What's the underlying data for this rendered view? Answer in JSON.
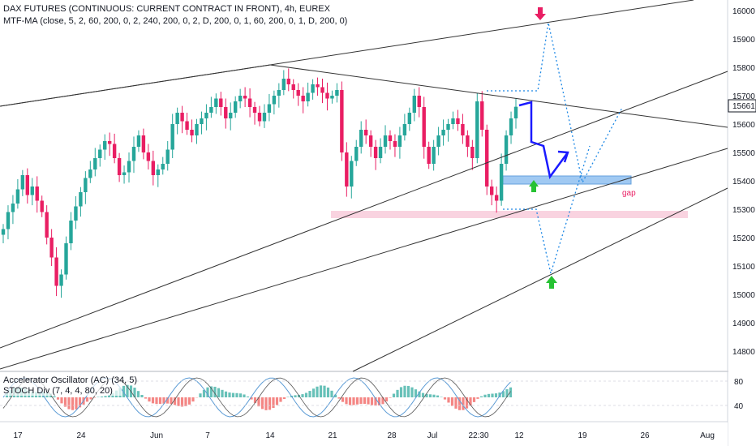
{
  "header": {
    "symbol_line": "DAX FUTURES (CONTINUOUS: CURRENT CONTRACT IN FRONT), 4h, EUREX",
    "indicator_line": "MTF-MA (close, 5, 2, 60, 200, 0, 2, 240, 200, 0, 2, D, 200, 0, 1, 60, 200, 0, 1, D, 200, 0)"
  },
  "oscillator": {
    "line1": "Accelerator Oscillator (AC) (34, 5)",
    "line2": "STOCH Div (7, 4, 4, 80, 20)",
    "ticks": [
      "80",
      "40"
    ]
  },
  "price_axis": {
    "ticks": [
      "16000",
      "15900",
      "15800",
      "15700",
      "15600",
      "15500",
      "15400",
      "15300",
      "15200",
      "15100",
      "15000",
      "14900",
      "14800"
    ],
    "last_price": "15661"
  },
  "time_axis": {
    "ticks": [
      "17",
      "24",
      "Jun",
      "7",
      "14",
      "21",
      "28",
      "Jul",
      "22:30",
      "12",
      "19",
      "26",
      "Aug"
    ]
  },
  "annotations": {
    "gap_label": "gap"
  },
  "colors": {
    "up": "#26a69a",
    "down": "#e91e63",
    "trendline": "#333333",
    "projection": "#1e88e5",
    "path": "#1a1aff",
    "gap_zone": "#90c0f0",
    "support_zone": "#f8c8d8",
    "arrow_down": "#e91e63",
    "arrow_up": "#26c233"
  },
  "chart_data": {
    "type": "candlestick",
    "title": "DAX FUTURES (CONTINUOUS: CURRENT CONTRACT IN FRONT), 4h, EUREX",
    "ylim": [
      14740,
      16060
    ],
    "x_ticks": [
      "17",
      "24",
      "Jun",
      "7",
      "14",
      "21",
      "28",
      "Jul",
      "22:30",
      "12",
      "19",
      "26",
      "Aug"
    ],
    "y_ticks": [
      16000,
      15900,
      15800,
      15700,
      15600,
      15500,
      15400,
      15300,
      15200,
      15100,
      15000,
      14900,
      14800
    ],
    "last_price": 15661,
    "key_levels": [
      {
        "name": "gap zone",
        "low": 15390,
        "high": 15410
      },
      {
        "name": "support zone",
        "low": 15270,
        "high": 15290
      }
    ],
    "ohlc_close_path": [
      15230,
      15290,
      15320,
      15370,
      15420,
      15350,
      15380,
      15330,
      15290,
      15200,
      15130,
      15030,
      15070,
      15180,
      15260,
      15310,
      15360,
      15410,
      15440,
      15480,
      15510,
      15540,
      15530,
      15480,
      15420,
      15430,
      15470,
      15520,
      15560,
      15500,
      15470,
      15420,
      15440,
      15460,
      15510,
      15600,
      15640,
      15610,
      15580,
      15560,
      15600,
      15620,
      15640,
      15660,
      15690,
      15660,
      15620,
      15640,
      15680,
      15700,
      15690,
      15660,
      15640,
      15610,
      15640,
      15670,
      15700,
      15720,
      15760,
      15740,
      15720,
      15700,
      15680,
      15710,
      15740,
      15730,
      15710,
      15690,
      15700,
      15720,
      15500,
      15380,
      15470,
      15520,
      15580,
      15560,
      15520,
      15480,
      15520,
      15560,
      15540,
      15520,
      15560,
      15600,
      15640,
      15700,
      15660,
      15520,
      15460,
      15520,
      15560,
      15580,
      15600,
      15620,
      15600,
      15560,
      15520,
      15480,
      15680,
      15580,
      15380,
      15350,
      15330,
      15460,
      15560,
      15620,
      15661
    ]
  }
}
